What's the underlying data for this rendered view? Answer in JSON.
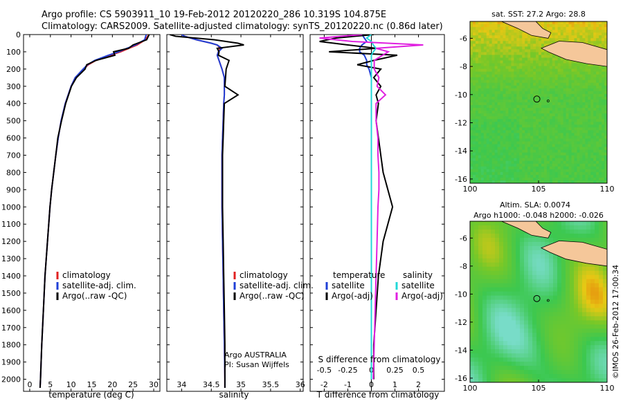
{
  "header": {
    "line1": "Argo profile: CS 5903911_10 19-Feb-2012 20120220_286 10.319S 104.875E",
    "line2": "Climatology: CARS2009. Satellite-adjusted climatology: synTS_20120220.nc (0.86d later)"
  },
  "colors": {
    "climatology": "#e02020",
    "satellite": "#1f3fd6",
    "argo": "#000000",
    "salinity_sat": "#22d8d8",
    "salinity_argo": "#e020e0",
    "land": "#f5c79a"
  },
  "legends": {
    "profile": [
      {
        "label": "climatology",
        "color": "#e02020"
      },
      {
        "label": "satellite-adj. clim.",
        "color": "#1f3fd6"
      },
      {
        "label": "Argo(..raw -QC)",
        "color": "#000000"
      }
    ],
    "diff": {
      "left_title": "temperature",
      "right_title": "salinity",
      "left": [
        {
          "label": "satellite",
          "color": "#1f3fd6"
        },
        {
          "label": "Argo(-adj)",
          "color": "#000000"
        }
      ],
      "right": [
        {
          "label": "satellite",
          "color": "#22d8d8"
        },
        {
          "label": "Argo(-adj)",
          "color": "#e020e0"
        }
      ]
    }
  },
  "annotations": {
    "argo_country": "Argo AUSTRALIA",
    "pi": "PI: Susan Wijffels",
    "copyright": "©IMOS 26-Feb-2012 17:00:34"
  },
  "chart_data": [
    {
      "type": "line",
      "panel": "temperature",
      "xlabel": "temperature (deg C)",
      "xlim": [
        -1.5,
        31.5
      ],
      "xticks": [
        0,
        5,
        10,
        15,
        20,
        25,
        30
      ],
      "ylim": [
        2070,
        0
      ],
      "yticks": [
        0,
        100,
        200,
        300,
        400,
        500,
        600,
        700,
        800,
        900,
        1000,
        1100,
        1200,
        1300,
        1400,
        1500,
        1600,
        1700,
        1800,
        1900,
        2000
      ],
      "depth": [
        0,
        30,
        60,
        80,
        100,
        120,
        150,
        175,
        200,
        250,
        300,
        400,
        500,
        600,
        700,
        800,
        900,
        1000,
        1200,
        1400,
        1600,
        1800,
        2000,
        2050
      ],
      "series": [
        {
          "name": "climatology",
          "color": "#e02020",
          "values": [
            28.8,
            28.0,
            26.0,
            24.0,
            22.0,
            19.5,
            16.0,
            14.2,
            13.0,
            11.0,
            10.0,
            8.6,
            7.6,
            6.9,
            6.3,
            5.8,
            5.3,
            4.9,
            4.3,
            3.7,
            3.3,
            2.9,
            2.6,
            2.5
          ]
        },
        {
          "name": "satellite-adj. clim.",
          "color": "#1f3fd6",
          "values": [
            28.2,
            27.8,
            25.6,
            23.5,
            21.5,
            19.0,
            15.7,
            14.0,
            12.9,
            11.0,
            10.0,
            8.6,
            7.6,
            6.9,
            6.3,
            5.8,
            5.3,
            4.9,
            4.3,
            3.7,
            3.3,
            2.9,
            2.6,
            2.5
          ]
        },
        {
          "name": "Argo(..raw -QC)",
          "color": "#000000",
          "values": [
            28.9,
            28.3,
            25.0,
            23.9,
            20.3,
            20.6,
            16.0,
            13.8,
            13.4,
            11.3,
            10.1,
            8.7,
            7.7,
            6.8,
            6.3,
            5.8,
            5.3,
            4.9,
            4.3,
            3.7,
            3.3,
            2.9,
            2.6,
            2.5
          ]
        }
      ]
    },
    {
      "type": "line",
      "panel": "salinity",
      "xlabel": "salinity",
      "xlim": [
        33.75,
        36.05
      ],
      "xticks": [
        34,
        34.5,
        35,
        35.5,
        36
      ],
      "ylim": [
        2070,
        0
      ],
      "depth": [
        0,
        10,
        30,
        50,
        60,
        80,
        100,
        120,
        150,
        200,
        250,
        300,
        350,
        400,
        500,
        600,
        700,
        800,
        1000,
        1200,
        1400,
        1600,
        1800,
        2000,
        2050
      ],
      "series": [
        {
          "name": "climatology",
          "color": "#e02020",
          "values": [
            34.0,
            34.05,
            34.25,
            34.5,
            34.6,
            34.65,
            34.62,
            34.6,
            34.63,
            34.68,
            34.72,
            34.72,
            34.72,
            34.71,
            34.7,
            34.69,
            34.68,
            34.68,
            34.68,
            34.69,
            34.7,
            34.71,
            34.72,
            34.73,
            34.73
          ]
        },
        {
          "name": "satellite-adj. clim.",
          "color": "#1f3fd6",
          "values": [
            34.0,
            34.05,
            34.25,
            34.5,
            34.6,
            34.68,
            34.62,
            34.6,
            34.63,
            34.68,
            34.72,
            34.72,
            34.72,
            34.71,
            34.7,
            34.69,
            34.68,
            34.68,
            34.68,
            34.69,
            34.7,
            34.71,
            34.72,
            34.73,
            34.73
          ]
        },
        {
          "name": "Argo(..raw -QC)",
          "color": "#000000",
          "values": [
            33.8,
            33.9,
            34.55,
            34.95,
            35.05,
            34.6,
            34.63,
            34.62,
            34.8,
            34.75,
            34.74,
            34.73,
            34.95,
            34.72,
            34.71,
            34.7,
            34.69,
            34.69,
            34.69,
            34.7,
            34.71,
            34.72,
            34.73,
            34.73,
            34.73
          ]
        }
      ]
    },
    {
      "type": "line",
      "panel": "difference",
      "xlabel": "T difference from climatology",
      "xlabel_top": "S difference from climatology",
      "xlim": [
        -2.6,
        3.1
      ],
      "xticks": [
        -2,
        -1,
        0,
        1,
        2
      ],
      "xticks_top": [
        -0.5,
        -0.25,
        0,
        0.25,
        0.5
      ],
      "ylim": [
        2070,
        0
      ],
      "depth": [
        0,
        20,
        40,
        60,
        80,
        100,
        120,
        150,
        175,
        200,
        250,
        300,
        350,
        400,
        500,
        600,
        700,
        800,
        900,
        1000,
        1200,
        1400,
        1600,
        1800,
        2000
      ],
      "series": [
        {
          "name": "temperature satellite",
          "color": "#1f3fd6",
          "values": [
            -0.4,
            -0.3,
            -0.2,
            -0.4,
            -0.5,
            -0.5,
            -0.3,
            -0.2,
            -0.2,
            -0.1,
            0,
            0,
            0,
            0,
            0,
            0,
            0,
            0,
            0,
            0,
            0,
            0,
            0,
            0,
            0
          ]
        },
        {
          "name": "temperature Argo(-adj)",
          "color": "#000000",
          "values": [
            0.1,
            -1.5,
            -2.2,
            -1.0,
            0.2,
            -1.8,
            1.1,
            0.1,
            -0.6,
            0.4,
            0.1,
            0.4,
            0.2,
            0.3,
            0.2,
            0.3,
            0.4,
            0.5,
            0.7,
            0.9,
            0.5,
            0.3,
            0.2,
            0.1,
            0.1
          ]
        },
        {
          "name": "salinity satellite",
          "color": "#22d8d8",
          "values": [
            0,
            -0.05,
            0,
            0.02,
            0.05,
            0.02,
            0,
            0,
            0,
            0,
            0,
            0,
            0,
            0,
            0,
            0,
            0,
            0,
            0,
            0,
            0,
            0,
            0,
            0,
            0
          ]
        },
        {
          "name": "salinity Argo(-adj)",
          "color": "#e020e0",
          "values": [
            -0.1,
            -0.55,
            -0.2,
            0.55,
            0.05,
            0.18,
            0.12,
            0.03,
            0.03,
            0.03,
            0.08,
            0.06,
            0.15,
            0.05,
            0.05,
            0.07,
            0.07,
            0.08,
            0.08,
            0.07,
            0.06,
            0.05,
            0.04,
            0.03,
            0.02
          ]
        }
      ]
    },
    {
      "type": "heatmap",
      "panel": "sst-map",
      "title": "sat. SST: 27.2  Argo: 28.8",
      "xlim": [
        100,
        110
      ],
      "ylim": [
        -16.3,
        -4.8
      ],
      "xticks": [
        100,
        105,
        110
      ],
      "yticks": [
        -6,
        -8,
        -10,
        -12,
        -14,
        -16
      ],
      "marker": {
        "lon": 104.875,
        "lat": -10.319
      }
    },
    {
      "type": "heatmap",
      "panel": "sla-map",
      "title": "Altim. SLA: 0.0074",
      "subtitle": "Argo h1000: -0.048 h2000: -0.026",
      "xlim": [
        100,
        110
      ],
      "ylim": [
        -16.3,
        -4.8
      ],
      "xticks": [
        100,
        105,
        110
      ],
      "yticks": [
        -6,
        -8,
        -10,
        -12,
        -14,
        -16
      ],
      "marker": {
        "lon": 104.875,
        "lat": -10.319
      }
    }
  ]
}
